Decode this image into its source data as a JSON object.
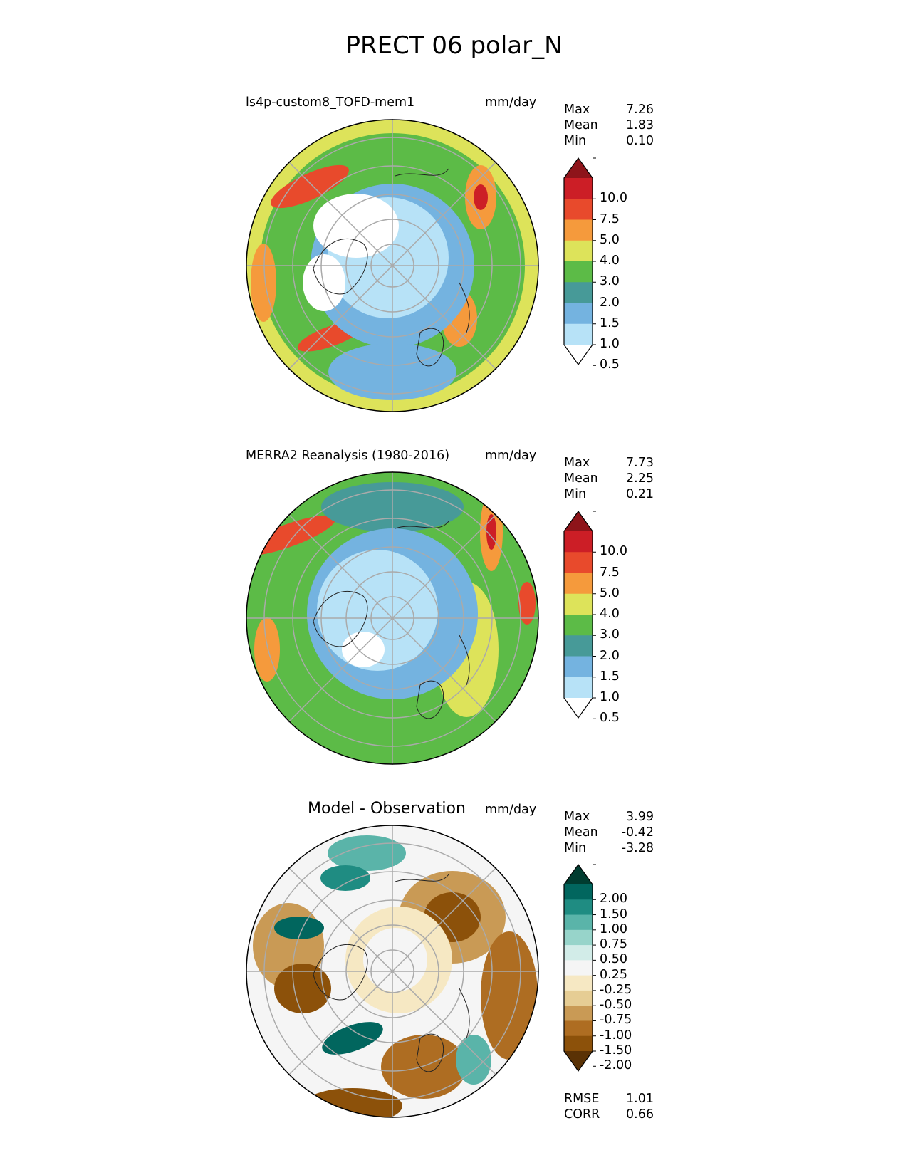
{
  "figure_title": "PRECT 06 polar_N",
  "chart_data": [
    {
      "type": "heatmap",
      "projection": "north polar stereographic",
      "title": "ls4p-custom8_TOFD-mem1",
      "units": "mm/day",
      "stats": {
        "max_label": "Max",
        "max": "7.26",
        "mean_label": "Mean",
        "mean": "1.83",
        "min_label": "Min",
        "min": "0.10"
      },
      "colorbar": {
        "ticks": [
          "10.0",
          "7.5",
          "5.0",
          "4.0",
          "3.0",
          "2.0",
          "1.5",
          "1.0",
          "0.5"
        ],
        "colors_top_to_bottom": [
          "#8e141a",
          "#cc1e26",
          "#e84a2c",
          "#f59a3c",
          "#dde35a",
          "#5cbb47",
          "#479a98",
          "#74b3e0",
          "#b7e2f7",
          "#ffffff"
        ]
      }
    },
    {
      "type": "heatmap",
      "projection": "north polar stereographic",
      "title": "MERRA2 Reanalysis (1980-2016)",
      "units": "mm/day",
      "stats": {
        "max_label": "Max",
        "max": "7.73",
        "mean_label": "Mean",
        "mean": "2.25",
        "min_label": "Min",
        "min": "0.21"
      },
      "colorbar": {
        "ticks": [
          "10.0",
          "7.5",
          "5.0",
          "4.0",
          "3.0",
          "2.0",
          "1.5",
          "1.0",
          "0.5"
        ],
        "colors_top_to_bottom": [
          "#8e141a",
          "#cc1e26",
          "#e84a2c",
          "#f59a3c",
          "#dde35a",
          "#5cbb47",
          "#479a98",
          "#74b3e0",
          "#b7e2f7",
          "#ffffff"
        ]
      }
    },
    {
      "type": "heatmap",
      "projection": "north polar stereographic",
      "title": "Model - Observation",
      "units": "mm/day",
      "stats": {
        "max_label": "Max",
        "max": "3.99",
        "mean_label": "Mean",
        "mean": "-0.42",
        "min_label": "Min",
        "min": "-3.28"
      },
      "colorbar": {
        "ticks": [
          "2.00",
          "1.50",
          "1.00",
          "0.75",
          "0.50",
          "0.25",
          "-0.25",
          "-0.50",
          "-0.75",
          "-1.00",
          "-1.50",
          "-2.00"
        ],
        "colors_top_to_bottom": [
          "#003c30",
          "#01665e",
          "#1f8c82",
          "#5ab4a9",
          "#97d4ca",
          "#d2ece8",
          "#f5f5f5",
          "#f6e8c3",
          "#e6cd94",
          "#c99a55",
          "#ae6d22",
          "#8c510a",
          "#5a3205"
        ]
      },
      "metrics": {
        "rmse_label": "RMSE",
        "rmse": "1.01",
        "corr_label": "CORR",
        "corr": "0.66"
      }
    }
  ]
}
